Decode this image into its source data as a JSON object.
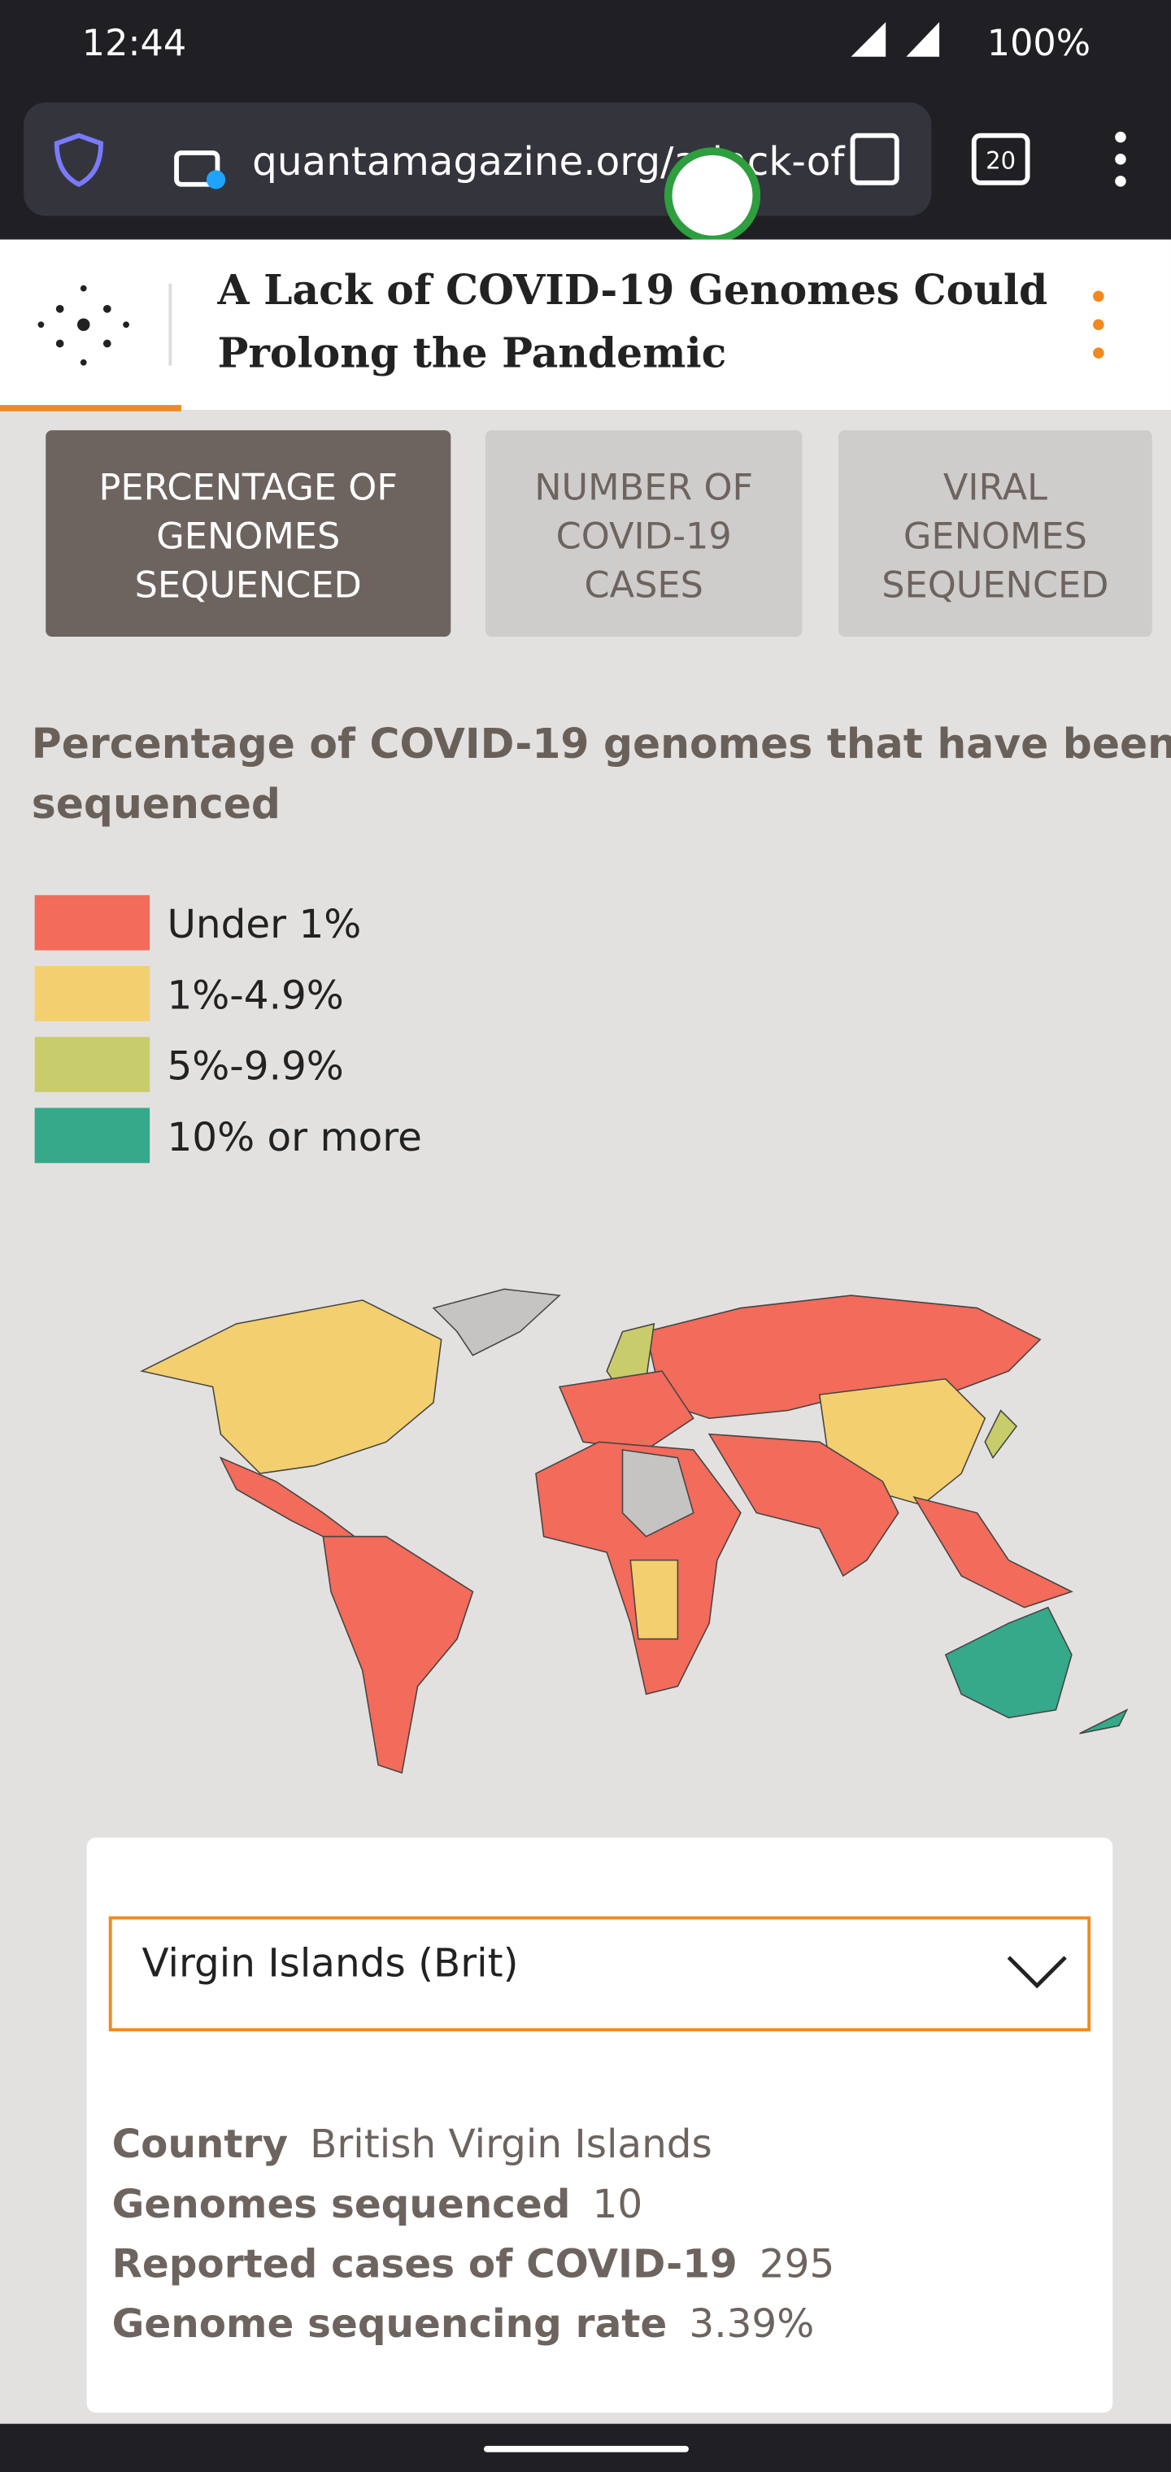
{
  "status_bar": {
    "time": "12:44",
    "battery": "100%"
  },
  "browser": {
    "url": "quantamagazine.org/a-lack-of",
    "tab_count": "20"
  },
  "header": {
    "title_lines": [
      "A Lack of COVID-19 Genomes Could",
      "Prolong the Pandemic"
    ]
  },
  "tabs": [
    {
      "lines": [
        "PERCENTAGE OF",
        "GENOMES",
        "SEQUENCED"
      ],
      "active": true
    },
    {
      "lines": [
        "NUMBER OF",
        "COVID-19",
        "CASES"
      ],
      "active": false
    },
    {
      "lines": [
        "VIRAL",
        "GENOMES",
        "SEQUENCED"
      ],
      "active": false
    }
  ],
  "map": {
    "title_lines": [
      "Percentage of COVID-19 genomes that have been",
      "sequenced"
    ],
    "legend": [
      {
        "label": "Under 1%",
        "color": "#f26b5b"
      },
      {
        "label": "1%-4.9%",
        "color": "#f3cf6f"
      },
      {
        "label": "5%-9.9%",
        "color": "#c9cc6b"
      },
      {
        "label": "10% or more",
        "color": "#35a98a"
      }
    ]
  },
  "details": {
    "selected": "Virgin Islands (Brit)",
    "fields": [
      {
        "label": "Country",
        "value": "British Virgin Islands"
      },
      {
        "label": "Genomes sequenced",
        "value": "10"
      },
      {
        "label": "Reported cases of COVID-19",
        "value": "295"
      },
      {
        "label": "Genome sequencing rate",
        "value": "3.39%"
      }
    ]
  }
}
